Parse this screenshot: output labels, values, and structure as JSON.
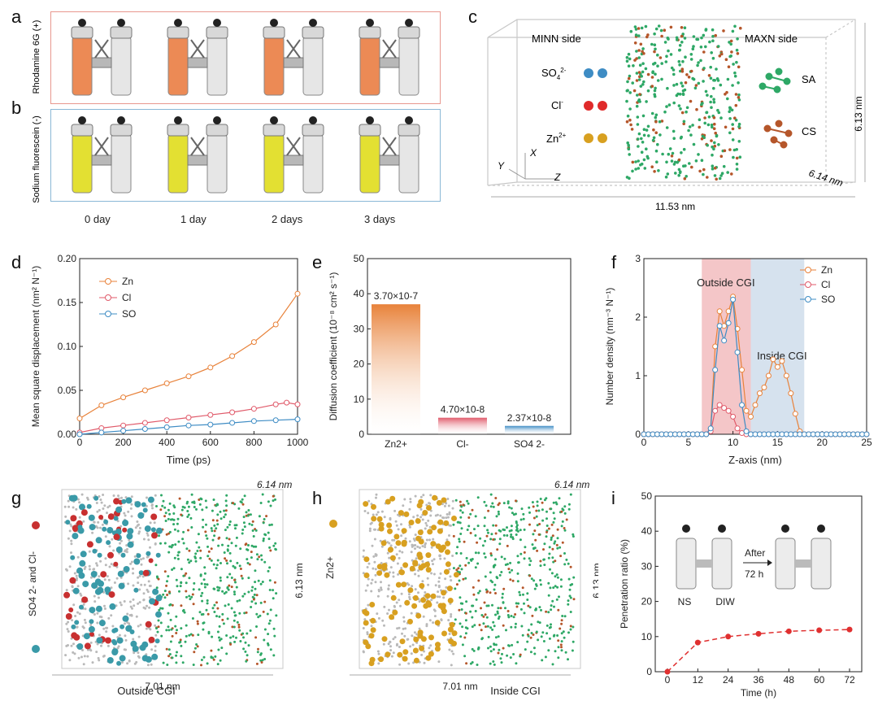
{
  "panels": {
    "a": {
      "label": "a",
      "side": "Rhodamine 6G (+)",
      "color": "#e8988e"
    },
    "b": {
      "label": "b",
      "side": "Sodium fluorescein (-)",
      "color": "#8ab8d6"
    },
    "days": [
      "0 day",
      "1 day",
      "2 days",
      "3 days"
    ],
    "c": {
      "label": "c",
      "minn": "MINN side",
      "maxn": "MAXN side",
      "sa": "SA",
      "cs": "CS",
      "ion_so4_base": "SO",
      "ion_so4_sub": "4",
      "ion_so4_sup": "2-",
      "ion_cl_base": "Cl",
      "ion_cl_sup": "-",
      "ion_zn_base": "Zn",
      "ion_zn_sup": "2+",
      "dim_x": "11.53 nm",
      "dim_y": "6.13 nm",
      "dim_z": "6.14 nm",
      "axis_x": "X",
      "axis_y": "Y",
      "axis_z": "Z"
    },
    "g": {
      "label": "g",
      "side_label": "Outside CGI",
      "dim_x": "7.01 nm",
      "dim_y": "6.13 nm",
      "dim_z": "6.14 nm",
      "legend": "SO4 2- and Cl-"
    },
    "h": {
      "label": "h",
      "side_label": "Inside CGI",
      "dim_x": "7.01 nm",
      "dim_y": "6.13 nm",
      "dim_z": "6.14 nm",
      "legend": "Zn2+"
    },
    "i_inset": {
      "ns": "NS",
      "diw": "DIW",
      "after": "After",
      "hours": "72 h"
    }
  },
  "colors": {
    "zn": "#e8823a",
    "cl": "#e05a6a",
    "so4": "#3e8cc4",
    "green": "#2ea866",
    "brown": "#b5562a",
    "pink_band": "#f4c6c8",
    "blue_band": "#d6e2ee",
    "red_dash": "#e03030"
  },
  "chart_data": [
    {
      "id": "d",
      "type": "scatter",
      "label": "d",
      "xlabel": "Time (ps)",
      "ylabel": "Mean square displacement (nm² N⁻¹)",
      "xlim": [
        0,
        1000
      ],
      "ylim": [
        0,
        0.2
      ],
      "xticks": [
        0,
        200,
        400,
        600,
        800,
        1000
      ],
      "yticks": [
        0.0,
        0.05,
        0.1,
        0.15,
        0.2
      ],
      "ytick_labels": [
        "0.00",
        "0.05",
        "0.10",
        "0.15",
        "0.20"
      ],
      "series": [
        {
          "name": "Zn2+",
          "color": "#e8823a",
          "x": [
            0,
            100,
            200,
            300,
            400,
            500,
            600,
            700,
            800,
            900,
            1000
          ],
          "y": [
            0.018,
            0.033,
            0.042,
            0.05,
            0.058,
            0.066,
            0.076,
            0.089,
            0.105,
            0.125,
            0.16
          ]
        },
        {
          "name": "Cl-",
          "color": "#e05a6a",
          "x": [
            0,
            100,
            200,
            300,
            400,
            500,
            600,
            700,
            800,
            900,
            950,
            1000
          ],
          "y": [
            0.002,
            0.007,
            0.01,
            0.013,
            0.016,
            0.019,
            0.022,
            0.025,
            0.029,
            0.034,
            0.036,
            0.034
          ]
        },
        {
          "name": "SO4 2-",
          "color": "#3e8cc4",
          "x": [
            0,
            100,
            200,
            300,
            400,
            500,
            600,
            700,
            800,
            900,
            1000
          ],
          "y": [
            0.0,
            0.002,
            0.004,
            0.006,
            0.008,
            0.01,
            0.011,
            0.013,
            0.015,
            0.016,
            0.017
          ]
        }
      ],
      "legend": [
        "Zn",
        "Cl",
        "SO"
      ]
    },
    {
      "id": "e",
      "type": "bar",
      "label": "e",
      "ylabel": "Diffusion coefficient (10⁻⁸ cm² s⁻¹)",
      "ylim": [
        0,
        50
      ],
      "yticks": [
        0,
        10,
        20,
        30,
        40,
        50
      ],
      "categories": [
        "Zn2+",
        "Cl-",
        "SO4 2-"
      ],
      "values": [
        37.0,
        4.7,
        2.37
      ],
      "value_labels": [
        "3.70×10-7",
        "4.70×10-8",
        "2.37×10-8"
      ],
      "colors": [
        "#e8823a",
        "#e05a6a",
        "#3e8cc4"
      ]
    },
    {
      "id": "f",
      "type": "line",
      "label": "f",
      "xlabel": "Z-axis (nm)",
      "ylabel": "Number density (nm⁻³ N⁻¹)",
      "xlim": [
        0,
        25
      ],
      "ylim": [
        0,
        3
      ],
      "xticks": [
        0,
        5,
        10,
        15,
        20,
        25
      ],
      "yticks": [
        0,
        1,
        2,
        3
      ],
      "bands": [
        {
          "from": 6.5,
          "to": 12,
          "label": "Outside CGI"
        },
        {
          "from": 12,
          "to": 18,
          "label": "Inside CGI"
        }
      ],
      "series": [
        {
          "name": "Zn2+",
          "color": "#e8823a",
          "x": [
            0,
            0.5,
            1,
            1.5,
            2,
            2.5,
            3,
            3.5,
            4,
            4.5,
            5,
            5.5,
            6,
            6.5,
            7,
            7.5,
            8,
            8.5,
            9,
            9.5,
            10,
            10.5,
            11,
            11.5,
            12,
            12.5,
            13,
            13.5,
            14,
            14.5,
            15,
            15.5,
            16,
            16.5,
            17,
            17.5,
            18,
            18.5,
            19,
            19.5,
            20,
            20.5,
            21,
            21.5,
            22,
            22.5,
            23,
            23.5,
            24,
            24.5,
            25
          ],
          "y": [
            0,
            0,
            0,
            0,
            0,
            0,
            0,
            0,
            0,
            0,
            0,
            0,
            0,
            0,
            0,
            0.1,
            1.5,
            2.1,
            1.85,
            2.1,
            2.35,
            1.8,
            1.1,
            0.4,
            0.3,
            0.5,
            0.7,
            0.8,
            1.0,
            1.28,
            1.15,
            1.25,
            1.0,
            0.7,
            0.35,
            0.05,
            0,
            0,
            0,
            0,
            0,
            0,
            0,
            0,
            0,
            0,
            0,
            0,
            0,
            0,
            0
          ]
        },
        {
          "name": "Cl-",
          "color": "#e05a6a",
          "x": [
            0,
            0.5,
            1,
            1.5,
            2,
            2.5,
            3,
            3.5,
            4,
            4.5,
            5,
            5.5,
            6,
            6.5,
            7,
            7.5,
            8,
            8.5,
            9,
            9.5,
            10,
            10.5,
            11,
            11.5,
            12,
            12.5,
            13,
            13.5,
            14,
            14.5,
            15,
            15.5,
            16,
            16.5,
            17,
            17.5,
            18,
            18.5,
            19,
            19.5,
            20,
            20.5,
            21,
            21.5,
            22,
            22.5,
            23,
            23.5,
            24,
            24.5,
            25
          ],
          "y": [
            0,
            0,
            0,
            0,
            0,
            0,
            0,
            0,
            0,
            0,
            0,
            0,
            0,
            0,
            0,
            0.05,
            0.4,
            0.5,
            0.45,
            0.4,
            0.3,
            0.1,
            0.02,
            0,
            0,
            0,
            0,
            0,
            0,
            0,
            0,
            0,
            0,
            0,
            0,
            0,
            0,
            0,
            0,
            0,
            0,
            0,
            0,
            0,
            0,
            0,
            0,
            0,
            0,
            0,
            0
          ]
        },
        {
          "name": "SO4 2-",
          "color": "#3e8cc4",
          "x": [
            0,
            0.5,
            1,
            1.5,
            2,
            2.5,
            3,
            3.5,
            4,
            4.5,
            5,
            5.5,
            6,
            6.5,
            7,
            7.5,
            8,
            8.5,
            9,
            9.5,
            10,
            10.5,
            11,
            11.5,
            12,
            12.5,
            13,
            13.5,
            14,
            14.5,
            15,
            15.5,
            16,
            16.5,
            17,
            17.5,
            18,
            18.5,
            19,
            19.5,
            20,
            20.5,
            21,
            21.5,
            22,
            22.5,
            23,
            23.5,
            24,
            24.5,
            25
          ],
          "y": [
            0,
            0,
            0,
            0,
            0,
            0,
            0,
            0,
            0,
            0,
            0,
            0,
            0,
            0,
            0,
            0.1,
            1.1,
            1.85,
            1.6,
            1.9,
            2.3,
            1.4,
            0.5,
            0.05,
            0,
            0,
            0,
            0,
            0,
            0,
            0,
            0,
            0,
            0,
            0,
            0,
            0,
            0,
            0,
            0,
            0,
            0,
            0,
            0,
            0,
            0,
            0,
            0,
            0,
            0,
            0
          ]
        }
      ],
      "legend": [
        "Zn",
        "Cl",
        "SO"
      ]
    },
    {
      "id": "i",
      "type": "line",
      "label": "i",
      "xlabel": "Time (h)",
      "ylabel": "Penetration ratio (%)",
      "xlim": [
        0,
        72
      ],
      "ylim": [
        0,
        50
      ],
      "xticks": [
        0,
        12,
        24,
        36,
        48,
        60,
        72
      ],
      "yticks": [
        0,
        10,
        20,
        30,
        40,
        50
      ],
      "series": [
        {
          "name": "Penetration",
          "color": "#e03030",
          "x": [
            0,
            12,
            24,
            36,
            48,
            60,
            72
          ],
          "y": [
            0,
            8.3,
            10.0,
            10.8,
            11.5,
            11.8,
            12.0
          ]
        }
      ]
    }
  ]
}
